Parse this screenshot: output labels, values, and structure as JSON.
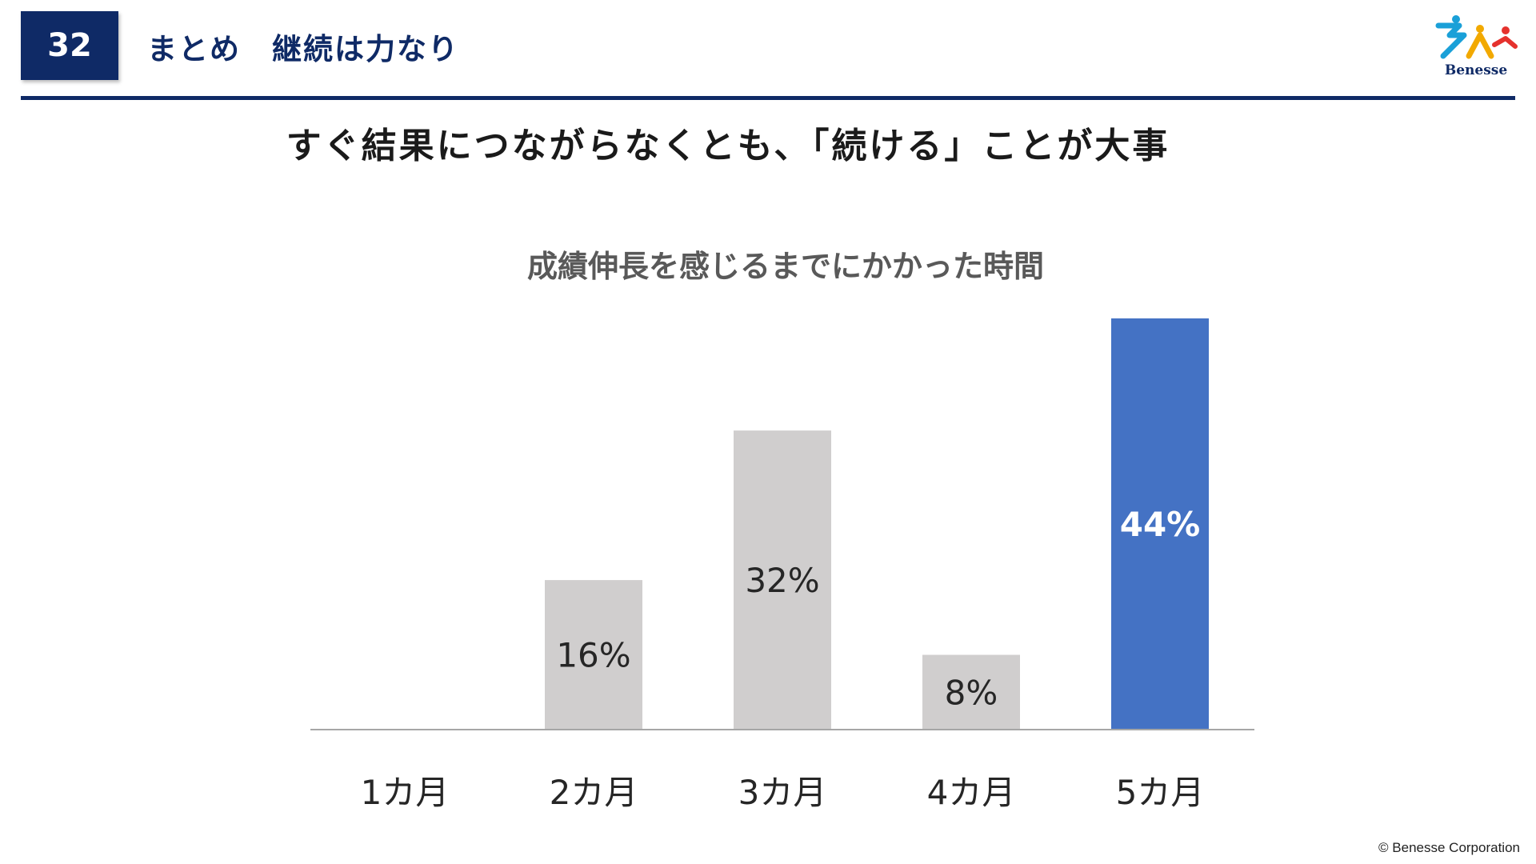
{
  "header": {
    "slide_number": "32",
    "title": "まとめ　継続は力なり",
    "logo_text": "Benesse"
  },
  "headline": "すぐ結果につながらなくとも、「続ける」ことが大事",
  "footer": {
    "copyright": "© Benesse Corporation"
  },
  "colors": {
    "navy": "#0f2a66",
    "bar_default": "#d0cece",
    "bar_highlight": "#4472c4"
  },
  "chart_data": {
    "type": "bar",
    "title": "成績伸長を感じるまでにかかった時間",
    "categories": [
      "1カ月",
      "2カ月",
      "3カ月",
      "4カ月",
      "5カ月"
    ],
    "values": [
      0,
      16,
      32,
      8,
      44
    ],
    "data_labels": [
      "",
      "16%",
      "32%",
      "8%",
      "44%"
    ],
    "unit": "%",
    "highlight_index": 4,
    "ylim": [
      0,
      44
    ],
    "grid": false,
    "legend": "none"
  }
}
